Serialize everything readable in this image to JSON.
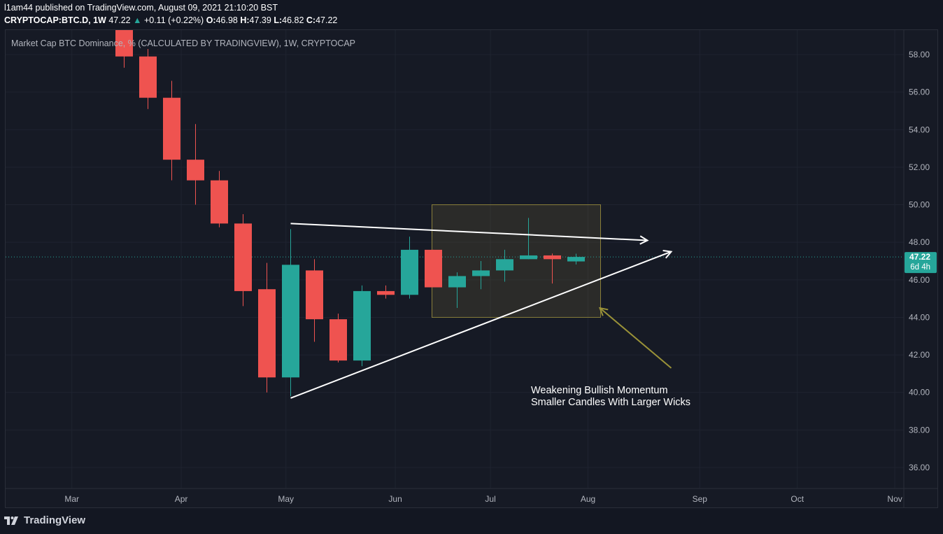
{
  "publisher": {
    "text": "l1am44 published on TradingView.com, August 09, 2021 21:10:20 BST"
  },
  "ohlc": {
    "symbol": "CRYPTOCAP:BTC.D, 1W",
    "last": "47.22",
    "change": "+0.11 (+0.22%)",
    "o_label": "O:",
    "o": "46.98",
    "h_label": "H:",
    "h": "47.39",
    "l_label": "L:",
    "l": "46.82",
    "c_label": "C:",
    "c": "47.22"
  },
  "footer": {
    "brand": "TradingView",
    "logo_icon": "tradingview-logo-icon"
  },
  "colors": {
    "up": "#26a69a",
    "down": "#ef5350",
    "background": "#161a25",
    "grid": "#1f2330",
    "axis_text": "#b2b5be",
    "price_label_bg": "#26a69a",
    "annotation_box": "#8a7f3a",
    "annotation_arrow": "#9a9238",
    "trendline": "#ffffff"
  },
  "chart_data": {
    "type": "candlestick",
    "title": "Market Cap BTC Dominance, % (CALCULATED BY TRADINGVIEW), 1W, CRYPTOCAP",
    "ylim": [
      35.0,
      59.5
    ],
    "y_ticks": [
      "58.00",
      "56.00",
      "54.00",
      "52.00",
      "50.00",
      "48.00",
      "46.00",
      "44.00",
      "42.00",
      "40.00",
      "38.00",
      "36.00"
    ],
    "x_ticks": [
      {
        "label": "Mar",
        "week": -2.2
      },
      {
        "label": "Apr",
        "week": 2.4
      },
      {
        "label": "May",
        "week": 6.8
      },
      {
        "label": "Jun",
        "week": 11.4
      },
      {
        "label": "Jul",
        "week": 15.4
      },
      {
        "label": "Aug",
        "week": 19.5
      },
      {
        "label": "Sep",
        "week": 24.2
      },
      {
        "label": "Oct",
        "week": 28.3
      },
      {
        "label": "Nov",
        "week": 32.4
      }
    ],
    "candles": [
      {
        "week": 0,
        "o": 60.0,
        "h": 60.0,
        "l": 57.3,
        "c": 57.9
      },
      {
        "week": 1,
        "o": 57.9,
        "h": 58.3,
        "l": 55.1,
        "c": 55.7
      },
      {
        "week": 2,
        "o": 55.7,
        "h": 56.6,
        "l": 51.3,
        "c": 52.4
      },
      {
        "week": 3,
        "o": 52.4,
        "h": 54.3,
        "l": 50.0,
        "c": 51.3
      },
      {
        "week": 4,
        "o": 51.3,
        "h": 51.8,
        "l": 48.8,
        "c": 49.0
      },
      {
        "week": 5,
        "o": 49.0,
        "h": 49.5,
        "l": 44.6,
        "c": 45.4
      },
      {
        "week": 6,
        "o": 45.5,
        "h": 46.9,
        "l": 40.0,
        "c": 40.8
      },
      {
        "week": 7,
        "o": 40.8,
        "h": 48.7,
        "l": 39.8,
        "c": 46.8
      },
      {
        "week": 8,
        "o": 46.5,
        "h": 47.1,
        "l": 42.7,
        "c": 43.9
      },
      {
        "week": 9,
        "o": 43.9,
        "h": 44.2,
        "l": 41.6,
        "c": 41.7
      },
      {
        "week": 10,
        "o": 41.7,
        "h": 45.7,
        "l": 41.4,
        "c": 45.4
      },
      {
        "week": 11,
        "o": 45.4,
        "h": 45.7,
        "l": 45.0,
        "c": 45.2
      },
      {
        "week": 12,
        "o": 45.2,
        "h": 48.3,
        "l": 45.0,
        "c": 47.6
      },
      {
        "week": 13,
        "o": 47.6,
        "h": 47.6,
        "l": 45.6,
        "c": 45.6
      },
      {
        "week": 14,
        "o": 45.6,
        "h": 46.4,
        "l": 44.5,
        "c": 46.2
      },
      {
        "week": 15,
        "o": 46.2,
        "h": 47.0,
        "l": 45.5,
        "c": 46.5
      },
      {
        "week": 16,
        "o": 46.5,
        "h": 47.6,
        "l": 45.9,
        "c": 47.1
      },
      {
        "week": 17,
        "o": 47.1,
        "h": 49.3,
        "l": 47.1,
        "c": 47.3
      },
      {
        "week": 18,
        "o": 47.3,
        "h": 47.4,
        "l": 45.8,
        "c": 47.1
      },
      {
        "week": 19,
        "o": 46.98,
        "h": 47.39,
        "l": 46.82,
        "c": 47.22
      }
    ],
    "last_price": {
      "value": 47.22,
      "label": "47.22",
      "countdown": "6d 4h"
    },
    "annotations": {
      "text_line1": "Weakening Bullish Momentum",
      "text_line2": "Smaller Candles With Larger Wicks",
      "rect": {
        "week_from": 13.0,
        "week_to": 20.0,
        "price_top": 50.0,
        "price_bottom": 44.0
      },
      "upper_trendline": {
        "from": {
          "week": 7.0,
          "price": 49.0
        },
        "to": {
          "week": 22.0,
          "price": 48.1
        }
      },
      "lower_trendline": {
        "from": {
          "week": 7.0,
          "price": 39.7
        },
        "to": {
          "week": 23.0,
          "price": 47.5
        }
      },
      "pointer_arrow": {
        "from": {
          "week": 23.0,
          "price": 41.3
        },
        "to": {
          "week": 20.0,
          "price": 44.5
        }
      }
    }
  }
}
